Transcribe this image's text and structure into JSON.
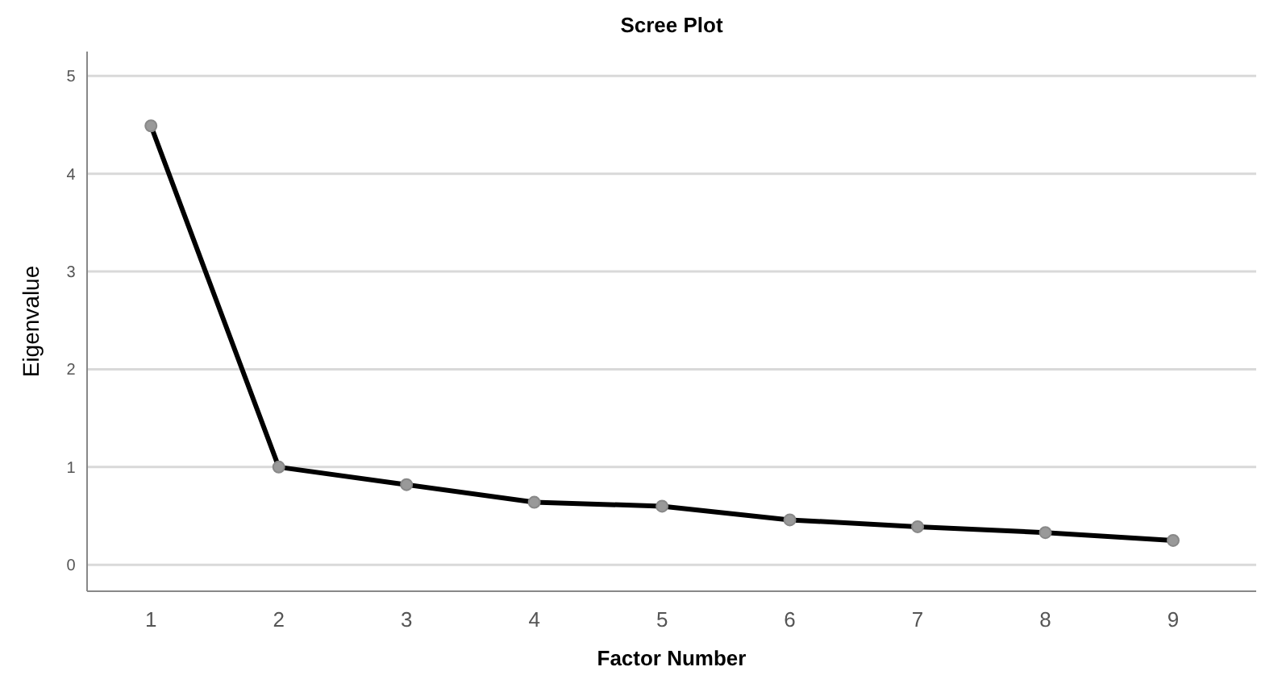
{
  "chart_data": {
    "type": "line",
    "title": "Scree Plot",
    "xlabel": "Factor Number",
    "ylabel": "Eigenvalue",
    "categories": [
      "1",
      "2",
      "3",
      "4",
      "5",
      "6",
      "7",
      "8",
      "9"
    ],
    "series": [
      {
        "color": "#000000",
        "values": [
          4.49,
          1.0,
          0.82,
          0.64,
          0.6,
          0.46,
          0.39,
          0.33,
          0.25
        ]
      }
    ],
    "ylim": [
      -0.27,
      5.25
    ],
    "yticks": [
      0,
      1,
      2,
      3,
      4,
      5
    ],
    "grid": "y",
    "marker": "circle",
    "line_style": "solid"
  }
}
